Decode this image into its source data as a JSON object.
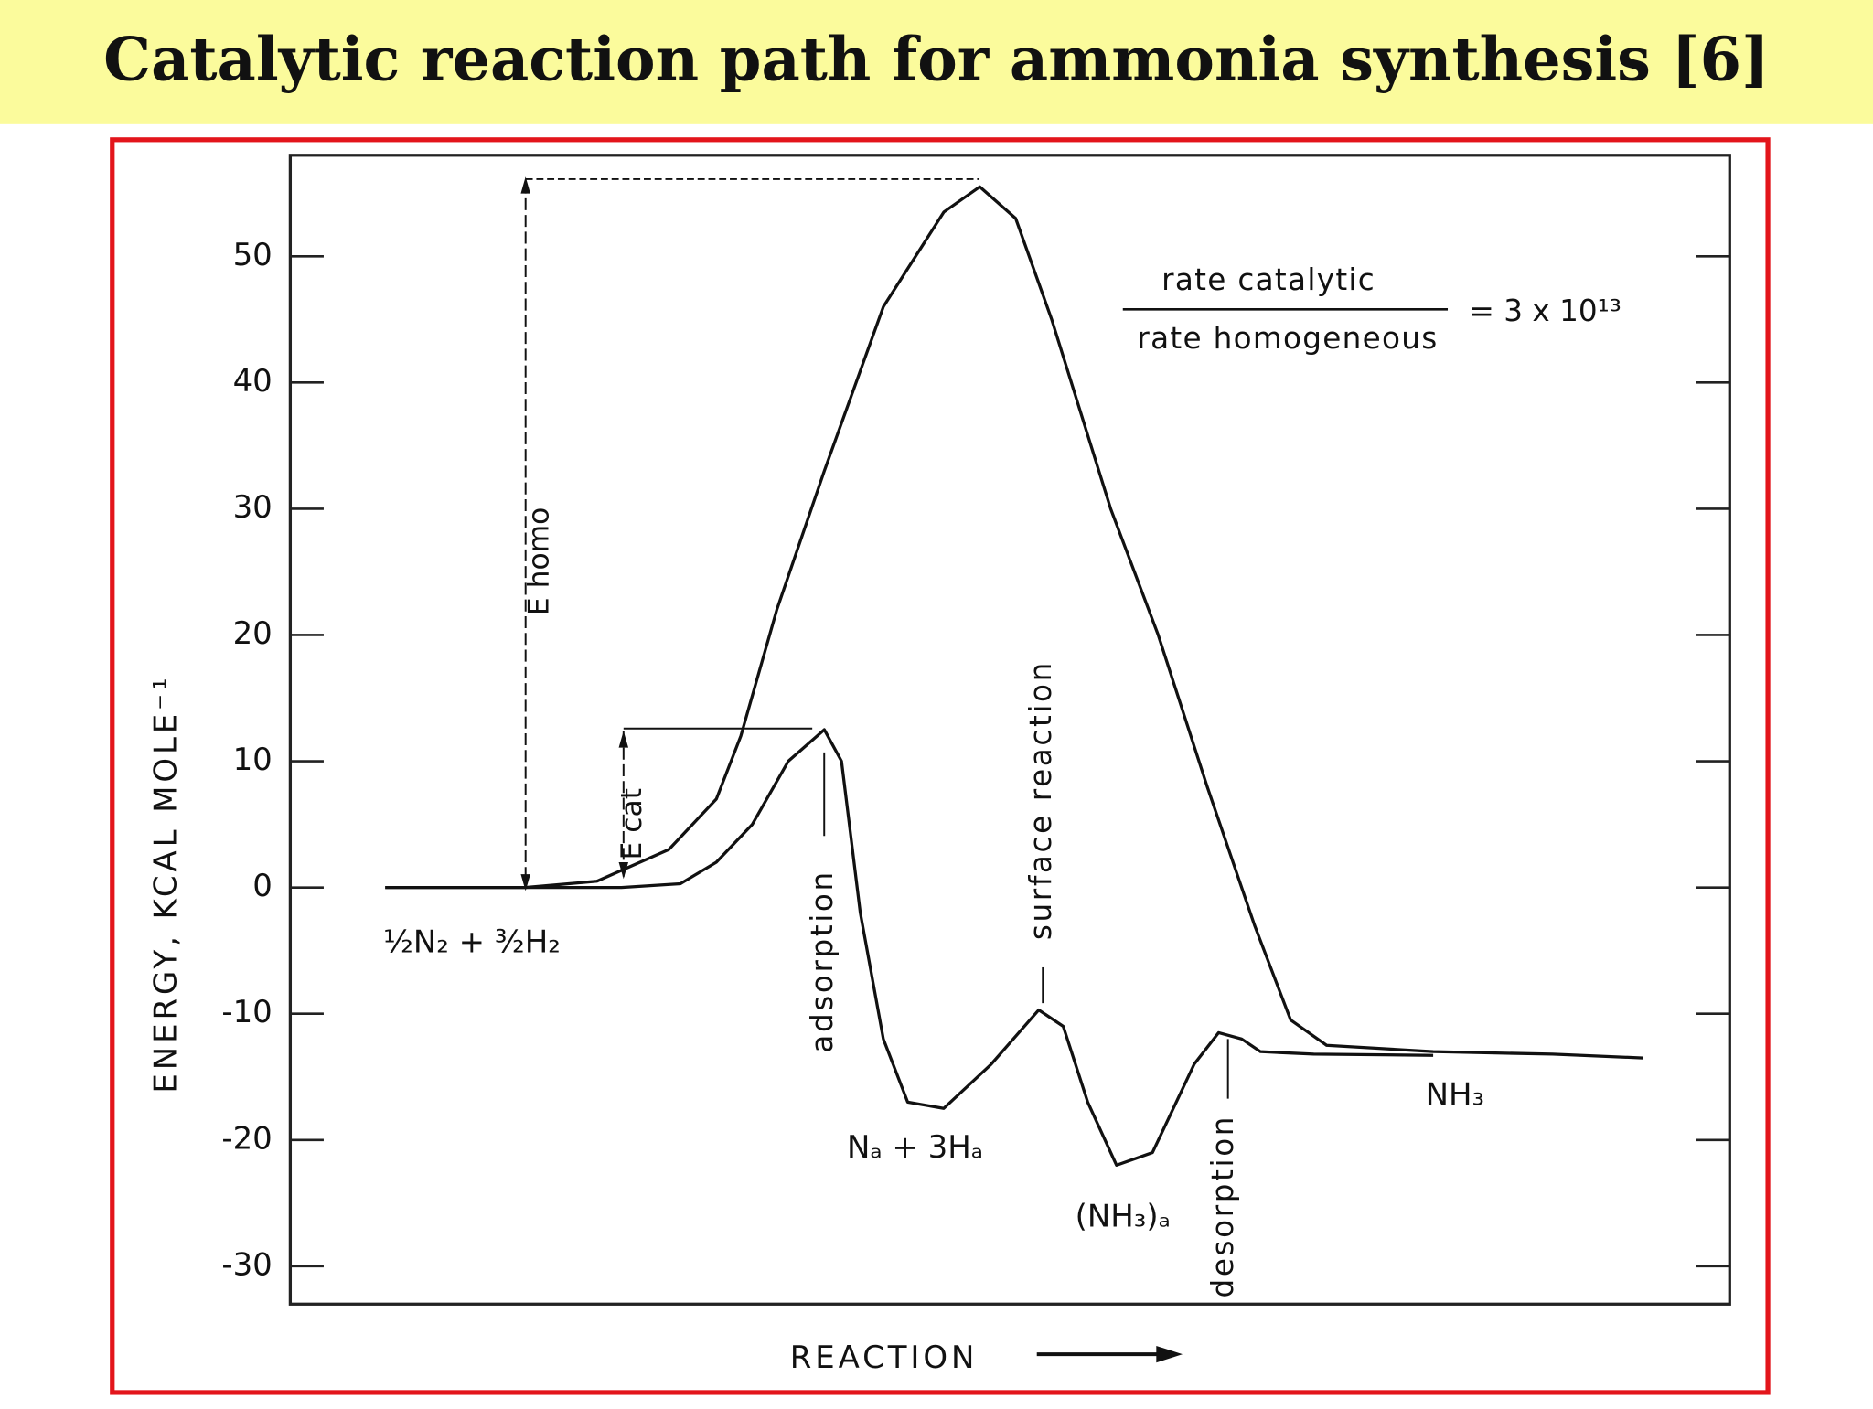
{
  "chart_data": {
    "type": "line",
    "title": "Catalytic reaction path for ammonia synthesis [6]",
    "ylabel": "ENERGY, KCAL MOLE⁻¹",
    "xlabel": "REACTION",
    "ylim": [
      -33,
      58
    ],
    "xlim": [
      0,
      100
    ],
    "yticks": [
      -30,
      -20,
      -10,
      0,
      10,
      20,
      30,
      40,
      50
    ],
    "color": "#111111",
    "series": [
      {
        "x": [
          6.6,
          16.3,
          21.3,
          26.3,
          29.6,
          31.3,
          33.8,
          37.1,
          41.2,
          45.4,
          47.9,
          50.4,
          52.9,
          57.0,
          60.3,
          63.7,
          67.0,
          69.5,
          72.0,
          79.4,
          87.7,
          94.0
        ],
        "values": [
          0,
          0,
          0.5,
          3,
          7,
          12,
          22,
          33,
          46,
          53.5,
          55.5,
          53,
          45,
          30,
          20,
          8,
          -3,
          -10.5,
          -12.5,
          -13,
          -13.2,
          -13.5
        ]
      },
      {
        "x": [
          6.6,
          23.0,
          27.1,
          29.6,
          32.1,
          34.6,
          37.1,
          38.3,
          39.6,
          41.2,
          42.9,
          45.4,
          48.7,
          52.0,
          53.7,
          55.4,
          57.4,
          59.9,
          62.8,
          64.5,
          66.1,
          67.4,
          71.1,
          79.4
        ],
        "values": [
          0,
          0,
          0.3,
          2,
          5,
          10,
          12.5,
          10,
          -2,
          -12,
          -17,
          -17.5,
          -14,
          -9.7,
          -11,
          -17,
          -22,
          -21,
          -14,
          -11.5,
          -12,
          -13,
          -13.2,
          -13.3
        ]
      }
    ],
    "annotations": [
      "½N₂  +  ³⁄₂H₂",
      "Nₐ + 3Hₐ",
      "(NH₃)ₐ",
      "NH₃",
      "adsorption",
      "surface reaction",
      "desorption",
      "E homo",
      "E cat"
    ],
    "ratio": {
      "numerator": "rate catalytic",
      "denominator": "rate homogeneous",
      "value": "= 3 x 10¹³"
    }
  }
}
